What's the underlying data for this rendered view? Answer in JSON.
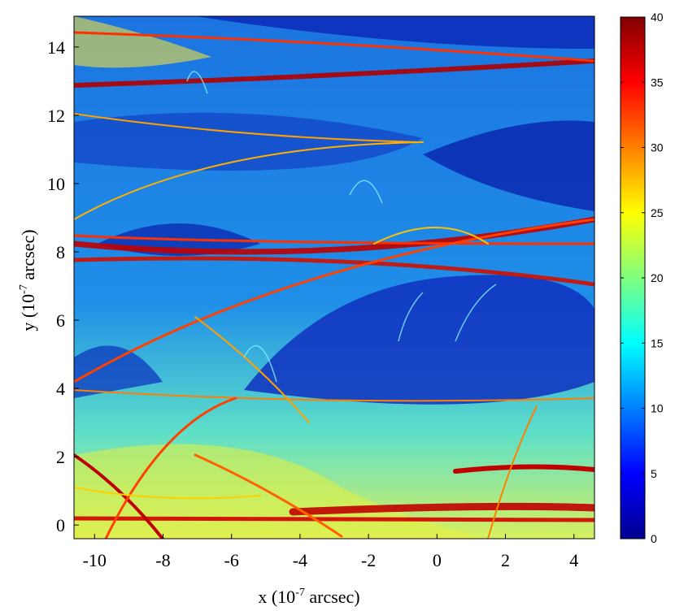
{
  "chart_data": {
    "type": "heatmap",
    "title": "",
    "xlabel": {
      "prefix": "x (10",
      "exponent": "-7",
      "suffix": " arcsec)"
    },
    "ylabel": {
      "prefix": "y (10",
      "exponent": "-7",
      "suffix": " arcsec)"
    },
    "xlim": [
      -10.6,
      4.6
    ],
    "ylim": [
      -0.4,
      14.9
    ],
    "xticks": [
      -10,
      -8,
      -6,
      -4,
      -2,
      0,
      2,
      4
    ],
    "yticks": [
      0,
      2,
      4,
      6,
      8,
      10,
      12,
      14
    ],
    "colorbar": {
      "range": [
        0,
        40
      ],
      "ticks": [
        0,
        5,
        10,
        15,
        20,
        25,
        30,
        35,
        40
      ],
      "colormap": "jet",
      "colors": [
        "#00008f",
        "#0000ff",
        "#00ffff",
        "#ffff00",
        "#ff0000",
        "#800000"
      ]
    },
    "grid": false
  }
}
